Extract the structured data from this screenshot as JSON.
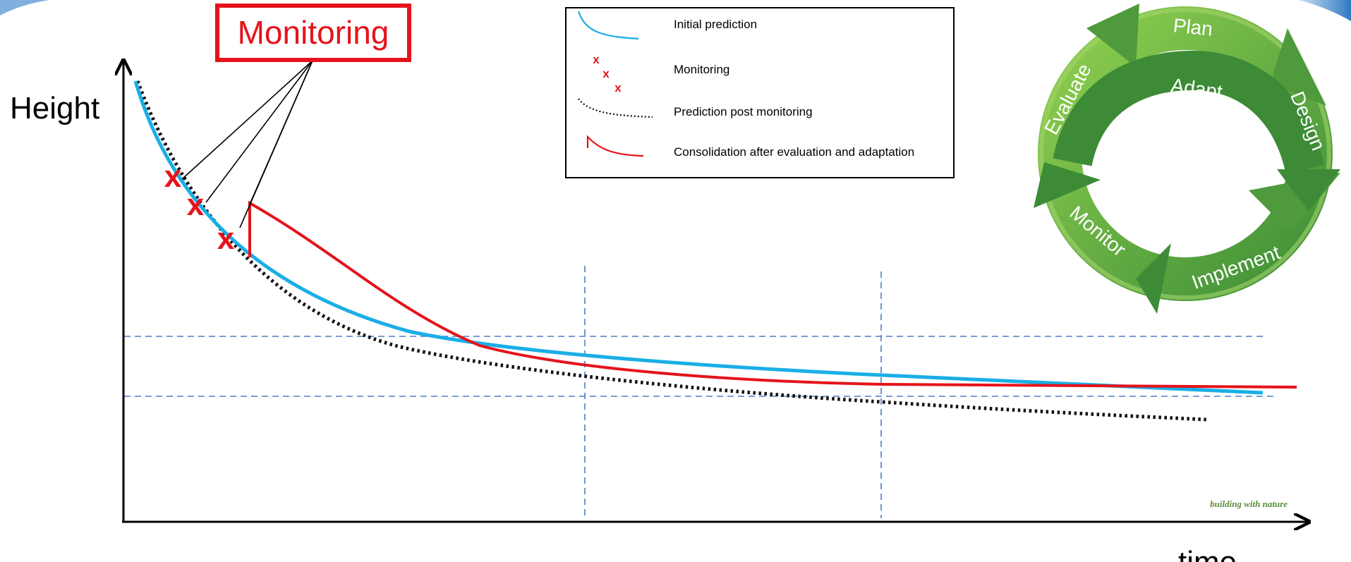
{
  "axes": {
    "ylabel": "Height",
    "xlabel": "time"
  },
  "callout": {
    "label": "Monitoring"
  },
  "legend": {
    "items": [
      {
        "label": "Initial prediction",
        "color": "#1aaee6"
      },
      {
        "label": "Monitoring",
        "color": "#e5131b"
      },
      {
        "label": "Prediction post monitoring",
        "color": "#111111"
      },
      {
        "label": "Consolidation after evaluation and adaptation",
        "color": "#e5131b"
      }
    ]
  },
  "cycle": {
    "center_label": "Adapt",
    "steps": [
      "Plan",
      "Design",
      "Implement",
      "Monitor",
      "Evaluate"
    ],
    "colors": {
      "light": "#7cc142",
      "dark": "#3d8b37"
    }
  },
  "watermark": "building with nature",
  "marker_glyph": "x",
  "colors": {
    "initial": "#1aaee6",
    "monitor": "#e5131b",
    "post": "#111111",
    "consol": "#e5131b",
    "guides": "#4a7fc7"
  }
}
